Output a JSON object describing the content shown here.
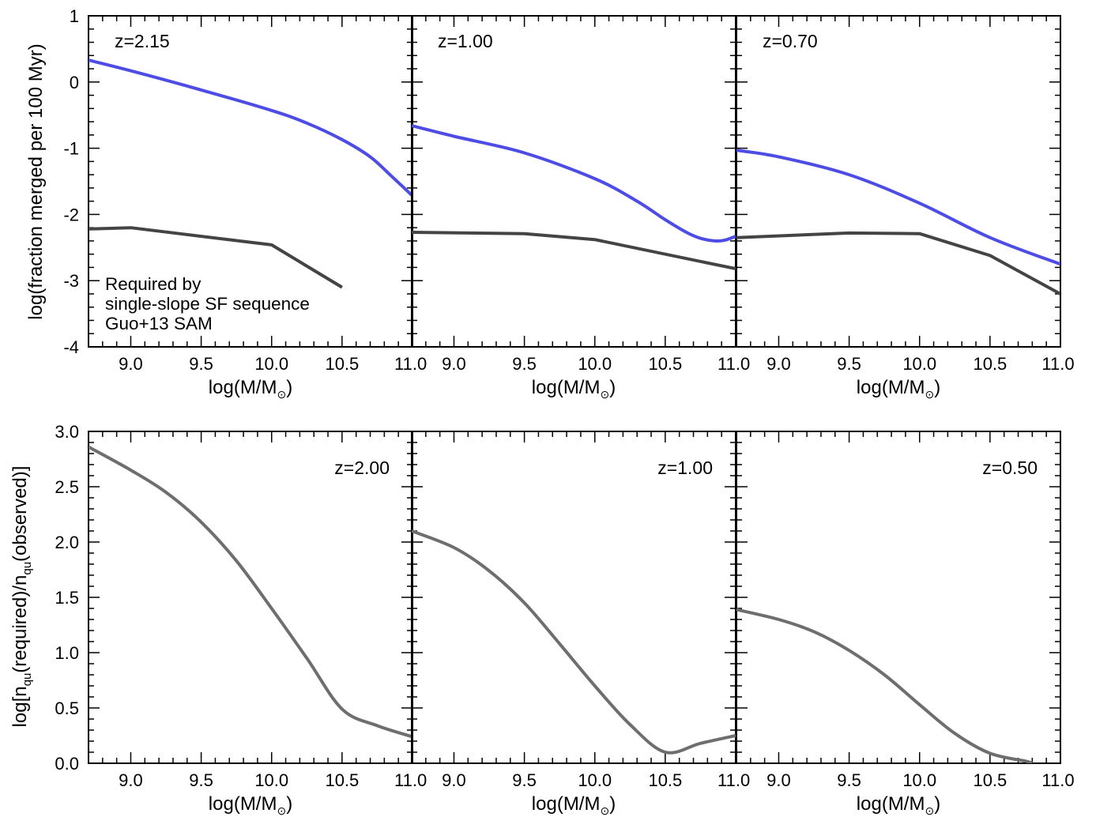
{
  "colors": {
    "required": "#4d4de6",
    "sam": "#444444",
    "ratio": "#6e6e6e",
    "axis": "#000000"
  },
  "top_ylabel": "log(fraction merged per 100 Myr)",
  "bottom_ylabel": {
    "pre": "log[n",
    "sub1": "qu",
    "mid": "(required)/n",
    "sub2": "qu",
    "post": "(observed)]"
  },
  "xlabel": {
    "pre": "log(M/M",
    "sun": "⊙",
    "post": ")"
  },
  "legend": {
    "required_line1": "Required by",
    "required_line2": "single-slope SF sequence",
    "sam": "Guo+13 SAM"
  },
  "chart_data": [
    {
      "type": "line",
      "row": "top",
      "panel": "z=2.15",
      "xlim": [
        8.7,
        11.0
      ],
      "ylim": [
        -4,
        1
      ],
      "xticks": [
        "9.0",
        "9.5",
        "10.0",
        "10.5",
        "11.0"
      ],
      "yticks": [
        "1",
        "0",
        "-1",
        "-2",
        "-3",
        "-4"
      ],
      "series": [
        {
          "name": "Required by single-slope SF sequence",
          "color_key": "required",
          "x": [
            8.7,
            9.0,
            9.5,
            10.0,
            10.25,
            10.5,
            10.7,
            10.85,
            11.0
          ],
          "y": [
            0.33,
            0.17,
            -0.12,
            -0.43,
            -0.62,
            -0.87,
            -1.13,
            -1.42,
            -1.72
          ]
        },
        {
          "name": "Guo+13 SAM",
          "color_key": "sam",
          "x": [
            8.7,
            9.0,
            10.0,
            10.5
          ],
          "y": [
            -2.22,
            -2.2,
            -2.46,
            -3.1
          ]
        }
      ]
    },
    {
      "type": "line",
      "row": "top",
      "panel": "z=1.00",
      "xlim": [
        8.7,
        11.0
      ],
      "ylim": [
        -4,
        1
      ],
      "xticks": [
        "9.0",
        "9.5",
        "10.0",
        "10.5",
        "11.0"
      ],
      "series": [
        {
          "name": "Required by single-slope SF sequence",
          "color_key": "required",
          "x": [
            8.7,
            9.0,
            9.5,
            10.0,
            10.3,
            10.5,
            10.65,
            10.75,
            10.85,
            10.92,
            11.0
          ],
          "y": [
            -0.66,
            -0.82,
            -1.07,
            -1.46,
            -1.8,
            -2.08,
            -2.27,
            -2.36,
            -2.4,
            -2.39,
            -2.33
          ]
        },
        {
          "name": "Guo+13 SAM",
          "color_key": "sam",
          "x": [
            8.7,
            9.5,
            10.0,
            11.0
          ],
          "y": [
            -2.27,
            -2.29,
            -2.38,
            -2.82
          ]
        }
      ]
    },
    {
      "type": "line",
      "row": "top",
      "panel": "z=0.70",
      "xlim": [
        8.7,
        11.0
      ],
      "ylim": [
        -4,
        1
      ],
      "xticks": [
        "9.0",
        "9.5",
        "10.0",
        "10.5",
        "11.0"
      ],
      "series": [
        {
          "name": "Required by single-slope SF sequence",
          "color_key": "required",
          "x": [
            8.7,
            9.0,
            9.5,
            10.0,
            10.5,
            11.0
          ],
          "y": [
            -1.03,
            -1.13,
            -1.4,
            -1.83,
            -2.35,
            -2.75
          ]
        },
        {
          "name": "Guo+13 SAM",
          "color_key": "sam",
          "x": [
            8.7,
            9.5,
            10.0,
            10.5,
            11.0
          ],
          "y": [
            -2.35,
            -2.28,
            -2.29,
            -2.62,
            -3.2
          ]
        }
      ]
    },
    {
      "type": "line",
      "row": "bottom",
      "panel": "z=2.00",
      "xlim": [
        8.7,
        11.0
      ],
      "ylim": [
        0,
        3
      ],
      "xticks": [
        "9.0",
        "9.5",
        "10.0",
        "10.5",
        "11.0"
      ],
      "yticks": [
        "3.0",
        "2.5",
        "2.0",
        "1.5",
        "1.0",
        "0.5",
        "0.0"
      ],
      "series": [
        {
          "color_key": "ratio",
          "x": [
            8.7,
            9.0,
            9.25,
            9.5,
            9.75,
            10.0,
            10.25,
            10.5,
            10.75,
            11.0
          ],
          "y": [
            2.86,
            2.65,
            2.45,
            2.18,
            1.83,
            1.4,
            0.95,
            0.49,
            0.34,
            0.24
          ]
        }
      ]
    },
    {
      "type": "line",
      "row": "bottom",
      "panel": "z=1.00",
      "xlim": [
        8.7,
        11.0
      ],
      "ylim": [
        0,
        3
      ],
      "xticks": [
        "9.0",
        "9.5",
        "10.0",
        "10.5",
        "11.0"
      ],
      "series": [
        {
          "color_key": "ratio",
          "x": [
            8.7,
            9.0,
            9.25,
            9.5,
            9.75,
            10.0,
            10.25,
            10.5,
            10.75,
            11.0
          ],
          "y": [
            2.1,
            1.95,
            1.74,
            1.45,
            1.08,
            0.7,
            0.35,
            0.1,
            0.18,
            0.25
          ]
        }
      ]
    },
    {
      "type": "line",
      "row": "bottom",
      "panel": "z=0.50",
      "xlim": [
        8.7,
        11.0
      ],
      "ylim": [
        0,
        3
      ],
      "xticks": [
        "9.0",
        "9.5",
        "10.0",
        "10.5",
        "11.0"
      ],
      "series": [
        {
          "color_key": "ratio",
          "x": [
            8.7,
            9.0,
            9.25,
            9.5,
            9.75,
            10.0,
            10.25,
            10.5,
            10.75,
            10.8
          ],
          "y": [
            1.39,
            1.3,
            1.19,
            1.02,
            0.8,
            0.53,
            0.27,
            0.09,
            0.02,
            0.0
          ]
        }
      ]
    }
  ]
}
